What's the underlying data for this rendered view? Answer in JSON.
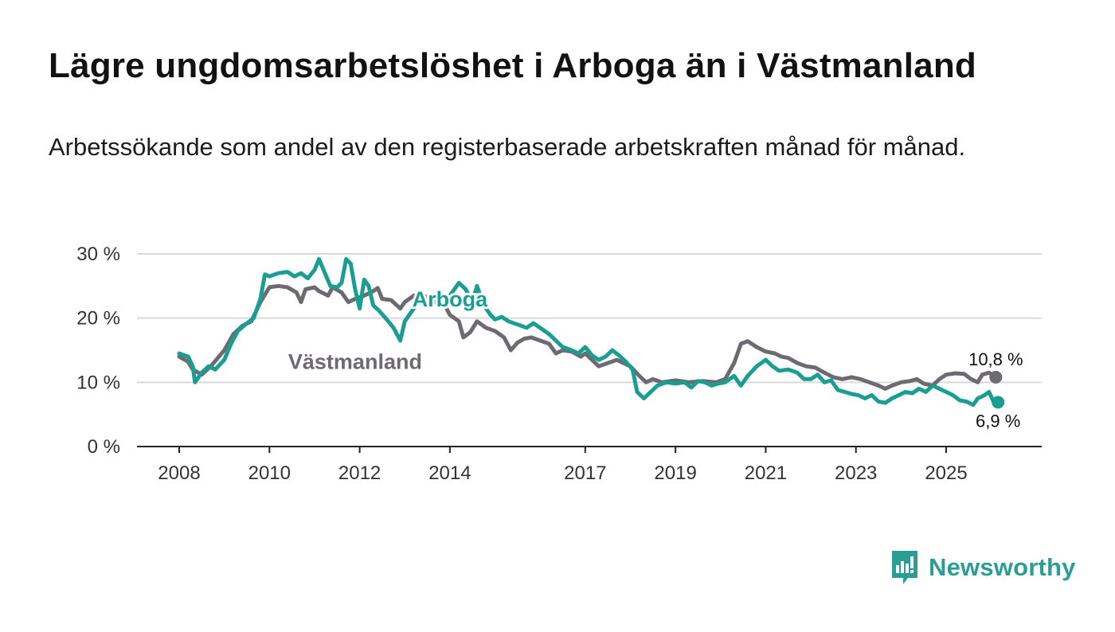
{
  "title": "Lägre ungdomsarbetslöshet i Arboga än i Västmanland",
  "subtitle": "Arbetssökande som andel av den registerbaserade arbetskraften månad för månad.",
  "brand": {
    "name": "Newsworthy",
    "color": "#2a9d95"
  },
  "chart_data": {
    "type": "line",
    "title": "Lägre ungdomsarbetslöshet i Arboga än i Västmanland",
    "xlabel": "",
    "ylabel": "",
    "xlim": [
      2008,
      2026.2
    ],
    "ylim": [
      0,
      30
    ],
    "y_ticks": [
      {
        "value": 0,
        "label": "0 %"
      },
      {
        "value": 10,
        "label": "10 %"
      },
      {
        "value": 20,
        "label": "20 %"
      },
      {
        "value": 30,
        "label": "30 %"
      }
    ],
    "x_ticks": [
      {
        "value": 2008,
        "label": "2008"
      },
      {
        "value": 2010,
        "label": "2010"
      },
      {
        "value": 2012,
        "label": "2012"
      },
      {
        "value": 2014,
        "label": "2014"
      },
      {
        "value": 2017,
        "label": "2017"
      },
      {
        "value": 2019,
        "label": "2019"
      },
      {
        "value": 2021,
        "label": "2021"
      },
      {
        "value": 2023,
        "label": "2023"
      },
      {
        "value": 2025,
        "label": "2025"
      }
    ],
    "grid": true,
    "series": [
      {
        "name": "Västmanland",
        "color": "#6d6a72",
        "end_label": "10,8 %",
        "label_at": [
          2011.9,
          12.1
        ],
        "points": [
          [
            2008.0,
            14.0
          ],
          [
            2008.2,
            13.2
          ],
          [
            2008.3,
            12.0
          ],
          [
            2008.5,
            11.2
          ],
          [
            2008.7,
            12.5
          ],
          [
            2009.0,
            15.0
          ],
          [
            2009.2,
            17.5
          ],
          [
            2009.4,
            18.8
          ],
          [
            2009.6,
            19.5
          ],
          [
            2009.8,
            22.5
          ],
          [
            2010.0,
            24.8
          ],
          [
            2010.2,
            25.0
          ],
          [
            2010.4,
            24.8
          ],
          [
            2010.6,
            24.0
          ],
          [
            2010.7,
            22.5
          ],
          [
            2010.8,
            24.5
          ],
          [
            2011.0,
            24.8
          ],
          [
            2011.1,
            24.2
          ],
          [
            2011.3,
            23.5
          ],
          [
            2011.4,
            24.8
          ],
          [
            2011.6,
            24.0
          ],
          [
            2011.75,
            22.5
          ],
          [
            2011.9,
            23.0
          ],
          [
            2012.1,
            23.5
          ],
          [
            2012.3,
            24.2
          ],
          [
            2012.4,
            24.7
          ],
          [
            2012.5,
            23.0
          ],
          [
            2012.7,
            22.8
          ],
          [
            2012.9,
            21.5
          ],
          [
            2013.0,
            22.5
          ],
          [
            2013.2,
            23.5
          ],
          [
            2013.35,
            23.8
          ],
          [
            2013.5,
            23.2
          ],
          [
            2013.7,
            22.5
          ],
          [
            2013.9,
            21.8
          ],
          [
            2014.0,
            20.5
          ],
          [
            2014.2,
            19.5
          ],
          [
            2014.3,
            17.0
          ],
          [
            2014.45,
            17.8
          ],
          [
            2014.6,
            19.5
          ],
          [
            2014.8,
            18.5
          ],
          [
            2015.0,
            18.0
          ],
          [
            2015.2,
            17.0
          ],
          [
            2015.35,
            15.0
          ],
          [
            2015.5,
            16.2
          ],
          [
            2015.65,
            16.8
          ],
          [
            2015.8,
            17.0
          ],
          [
            2016.0,
            16.5
          ],
          [
            2016.2,
            16.0
          ],
          [
            2016.35,
            14.5
          ],
          [
            2016.5,
            15.0
          ],
          [
            2016.7,
            14.8
          ],
          [
            2016.9,
            14.0
          ],
          [
            2017.0,
            14.5
          ],
          [
            2017.15,
            13.5
          ],
          [
            2017.3,
            12.5
          ],
          [
            2017.5,
            13.0
          ],
          [
            2017.7,
            13.5
          ],
          [
            2017.85,
            13.0
          ],
          [
            2018.0,
            12.5
          ],
          [
            2018.2,
            11.0
          ],
          [
            2018.35,
            10.0
          ],
          [
            2018.5,
            10.5
          ],
          [
            2018.7,
            10.0
          ],
          [
            2019.0,
            10.3
          ],
          [
            2019.3,
            10.0
          ],
          [
            2019.6,
            10.2
          ],
          [
            2019.9,
            10.0
          ],
          [
            2020.1,
            10.5
          ],
          [
            2020.3,
            13.0
          ],
          [
            2020.45,
            16.0
          ],
          [
            2020.6,
            16.4
          ],
          [
            2020.8,
            15.5
          ],
          [
            2021.0,
            14.8
          ],
          [
            2021.2,
            14.5
          ],
          [
            2021.35,
            14.0
          ],
          [
            2021.5,
            13.8
          ],
          [
            2021.7,
            13.0
          ],
          [
            2021.9,
            12.5
          ],
          [
            2022.1,
            12.3
          ],
          [
            2022.3,
            11.5
          ],
          [
            2022.5,
            10.8
          ],
          [
            2022.7,
            10.5
          ],
          [
            2022.9,
            10.8
          ],
          [
            2023.1,
            10.5
          ],
          [
            2023.3,
            10.0
          ],
          [
            2023.5,
            9.5
          ],
          [
            2023.65,
            9.0
          ],
          [
            2023.8,
            9.5
          ],
          [
            2024.0,
            10.0
          ],
          [
            2024.2,
            10.2
          ],
          [
            2024.35,
            10.5
          ],
          [
            2024.5,
            9.8
          ],
          [
            2024.7,
            9.5
          ],
          [
            2024.85,
            10.5
          ],
          [
            2025.0,
            11.2
          ],
          [
            2025.2,
            11.4
          ],
          [
            2025.4,
            11.3
          ],
          [
            2025.55,
            10.5
          ],
          [
            2025.7,
            10.0
          ],
          [
            2025.8,
            11.2
          ],
          [
            2025.95,
            11.5
          ],
          [
            2026.1,
            10.8
          ]
        ]
      },
      {
        "name": "Arboga",
        "color": "#1a9e92",
        "end_label": "6,9 %",
        "label_at": [
          2014.0,
          21.8
        ],
        "points": [
          [
            2008.0,
            14.5
          ],
          [
            2008.2,
            14.0
          ],
          [
            2008.3,
            12.5
          ],
          [
            2008.35,
            10.0
          ],
          [
            2008.5,
            11.5
          ],
          [
            2008.65,
            12.5
          ],
          [
            2008.8,
            12.0
          ],
          [
            2009.0,
            13.5
          ],
          [
            2009.15,
            16.0
          ],
          [
            2009.3,
            18.0
          ],
          [
            2009.5,
            19.2
          ],
          [
            2009.65,
            20.0
          ],
          [
            2009.8,
            23.0
          ],
          [
            2009.9,
            26.8
          ],
          [
            2010.0,
            26.5
          ],
          [
            2010.2,
            27.0
          ],
          [
            2010.4,
            27.2
          ],
          [
            2010.55,
            26.5
          ],
          [
            2010.7,
            27.0
          ],
          [
            2010.85,
            26.2
          ],
          [
            2011.0,
            27.5
          ],
          [
            2011.1,
            29.2
          ],
          [
            2011.2,
            27.5
          ],
          [
            2011.35,
            25.0
          ],
          [
            2011.5,
            24.8
          ],
          [
            2011.6,
            25.5
          ],
          [
            2011.7,
            29.2
          ],
          [
            2011.8,
            28.5
          ],
          [
            2011.9,
            24.5
          ],
          [
            2012.0,
            21.5
          ],
          [
            2012.1,
            26.0
          ],
          [
            2012.2,
            25.0
          ],
          [
            2012.3,
            22.0
          ],
          [
            2012.45,
            21.0
          ],
          [
            2012.6,
            19.8
          ],
          [
            2012.75,
            18.5
          ],
          [
            2012.9,
            16.5
          ],
          [
            2013.0,
            19.5
          ],
          [
            2013.15,
            21.0
          ],
          [
            2013.3,
            22.5
          ],
          [
            2013.45,
            22.8
          ],
          [
            2013.6,
            23.0
          ],
          [
            2013.75,
            22.5
          ],
          [
            2013.9,
            22.5
          ],
          [
            2014.05,
            24.0
          ],
          [
            2014.2,
            25.5
          ],
          [
            2014.35,
            24.5
          ],
          [
            2014.5,
            22.5
          ],
          [
            2014.6,
            25.0
          ],
          [
            2014.75,
            22.0
          ],
          [
            2014.9,
            20.5
          ],
          [
            2015.0,
            19.8
          ],
          [
            2015.15,
            20.2
          ],
          [
            2015.3,
            19.5
          ],
          [
            2015.5,
            19.0
          ],
          [
            2015.7,
            18.5
          ],
          [
            2015.85,
            19.2
          ],
          [
            2016.0,
            18.5
          ],
          [
            2016.2,
            17.5
          ],
          [
            2016.35,
            16.5
          ],
          [
            2016.5,
            15.5
          ],
          [
            2016.7,
            15.0
          ],
          [
            2016.85,
            14.5
          ],
          [
            2017.0,
            15.5
          ],
          [
            2017.15,
            14.2
          ],
          [
            2017.3,
            13.5
          ],
          [
            2017.45,
            14.0
          ],
          [
            2017.6,
            15.0
          ],
          [
            2017.75,
            14.2
          ],
          [
            2017.9,
            13.2
          ],
          [
            2018.05,
            12.0
          ],
          [
            2018.15,
            8.5
          ],
          [
            2018.3,
            7.5
          ],
          [
            2018.45,
            8.5
          ],
          [
            2018.6,
            9.5
          ],
          [
            2018.8,
            10.0
          ],
          [
            2019.0,
            9.8
          ],
          [
            2019.2,
            10.0
          ],
          [
            2019.35,
            9.2
          ],
          [
            2019.5,
            10.2
          ],
          [
            2019.65,
            10.0
          ],
          [
            2019.8,
            9.5
          ],
          [
            2019.95,
            9.8
          ],
          [
            2020.1,
            10.0
          ],
          [
            2020.3,
            11.0
          ],
          [
            2020.45,
            9.5
          ],
          [
            2020.6,
            11.0
          ],
          [
            2020.8,
            12.5
          ],
          [
            2021.0,
            13.5
          ],
          [
            2021.15,
            12.5
          ],
          [
            2021.3,
            11.8
          ],
          [
            2021.5,
            12.0
          ],
          [
            2021.7,
            11.5
          ],
          [
            2021.85,
            10.5
          ],
          [
            2022.0,
            10.5
          ],
          [
            2022.15,
            11.2
          ],
          [
            2022.3,
            10.0
          ],
          [
            2022.45,
            10.3
          ],
          [
            2022.6,
            8.8
          ],
          [
            2022.75,
            8.5
          ],
          [
            2022.9,
            8.2
          ],
          [
            2023.05,
            8.0
          ],
          [
            2023.2,
            7.5
          ],
          [
            2023.35,
            8.0
          ],
          [
            2023.5,
            7.0
          ],
          [
            2023.65,
            6.8
          ],
          [
            2023.8,
            7.5
          ],
          [
            2023.95,
            8.0
          ],
          [
            2024.1,
            8.5
          ],
          [
            2024.25,
            8.3
          ],
          [
            2024.4,
            9.0
          ],
          [
            2024.55,
            8.5
          ],
          [
            2024.7,
            9.5
          ],
          [
            2024.85,
            9.0
          ],
          [
            2025.0,
            8.5
          ],
          [
            2025.15,
            8.0
          ],
          [
            2025.3,
            7.2
          ],
          [
            2025.45,
            7.0
          ],
          [
            2025.6,
            6.5
          ],
          [
            2025.7,
            7.5
          ],
          [
            2025.85,
            8.0
          ],
          [
            2025.95,
            8.5
          ],
          [
            2026.05,
            7.0
          ],
          [
            2026.15,
            6.9
          ]
        ]
      }
    ]
  }
}
